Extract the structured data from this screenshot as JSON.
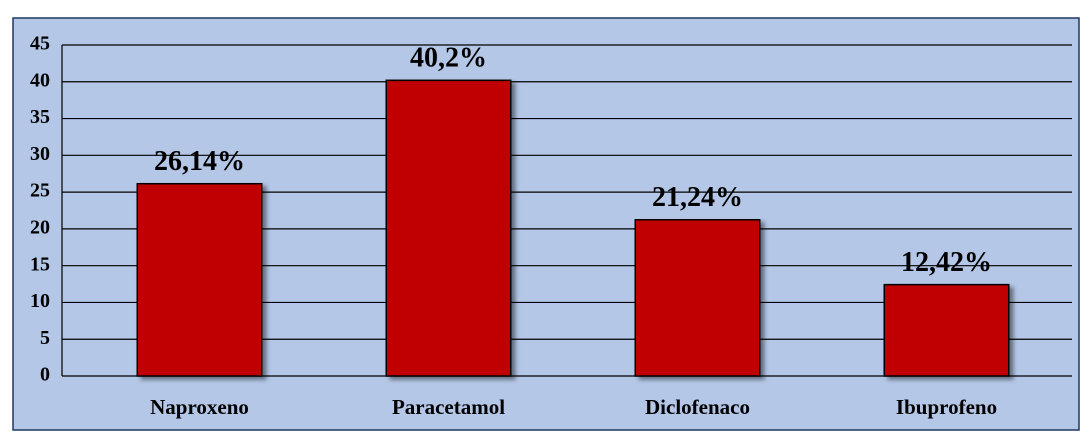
{
  "chart_data": {
    "type": "bar",
    "categories": [
      "Naproxeno",
      "Paracetamol",
      "Diclofenaco",
      "Ibuprofeno"
    ],
    "values": [
      26.14,
      40.2,
      21.24,
      12.42
    ],
    "value_labels": [
      "26,14%",
      "40,2%",
      "21,24%",
      "12,42%"
    ],
    "color": "#c00000",
    "ylim": [
      0,
      45
    ],
    "yticks": [
      0,
      5,
      10,
      15,
      20,
      25,
      30,
      35,
      40,
      45
    ],
    "grid": true
  }
}
